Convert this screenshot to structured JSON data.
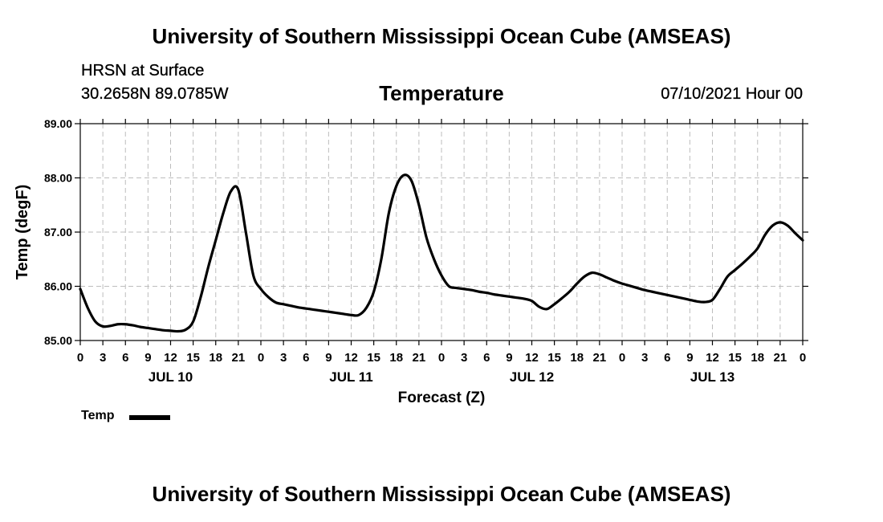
{
  "header": {
    "main_title": "University of Southern Mississippi Ocean Cube (AMSEAS)",
    "station": "HRSN at Surface",
    "coordinates": "30.2658N  89.0785W",
    "datetime": "07/10/2021 Hour 00"
  },
  "footer": {
    "main_title": "University of Southern Mississippi Ocean Cube (AMSEAS)"
  },
  "chart_data": {
    "type": "line",
    "title": "Temperature",
    "xlabel": "Forecast (Z)",
    "ylabel": "Temp (degF)",
    "ylim": [
      85.0,
      89.0
    ],
    "yticks": [
      "85.00",
      "86.00",
      "87.00",
      "88.00",
      "89.00"
    ],
    "xlim": [
      0,
      96
    ],
    "xticks": [
      {
        "hour": 0,
        "label": "0"
      },
      {
        "hour": 3,
        "label": "3"
      },
      {
        "hour": 6,
        "label": "6"
      },
      {
        "hour": 9,
        "label": "9"
      },
      {
        "hour": 12,
        "label": "12"
      },
      {
        "hour": 15,
        "label": "15"
      },
      {
        "hour": 18,
        "label": "18"
      },
      {
        "hour": 21,
        "label": "21"
      },
      {
        "hour": 24,
        "label": "0"
      },
      {
        "hour": 27,
        "label": "3"
      },
      {
        "hour": 30,
        "label": "6"
      },
      {
        "hour": 33,
        "label": "9"
      },
      {
        "hour": 36,
        "label": "12"
      },
      {
        "hour": 39,
        "label": "15"
      },
      {
        "hour": 42,
        "label": "18"
      },
      {
        "hour": 45,
        "label": "21"
      },
      {
        "hour": 48,
        "label": "0"
      },
      {
        "hour": 51,
        "label": "3"
      },
      {
        "hour": 54,
        "label": "6"
      },
      {
        "hour": 57,
        "label": "9"
      },
      {
        "hour": 60,
        "label": "12"
      },
      {
        "hour": 63,
        "label": "15"
      },
      {
        "hour": 66,
        "label": "18"
      },
      {
        "hour": 69,
        "label": "21"
      },
      {
        "hour": 72,
        "label": "0"
      },
      {
        "hour": 75,
        "label": "3"
      },
      {
        "hour": 78,
        "label": "6"
      },
      {
        "hour": 81,
        "label": "9"
      },
      {
        "hour": 84,
        "label": "12"
      },
      {
        "hour": 87,
        "label": "15"
      },
      {
        "hour": 90,
        "label": "18"
      },
      {
        "hour": 93,
        "label": "21"
      },
      {
        "hour": 96,
        "label": "0"
      }
    ],
    "day_labels": [
      {
        "hour": 12,
        "label": "JUL 10"
      },
      {
        "hour": 36,
        "label": "JUL 11"
      },
      {
        "hour": 60,
        "label": "JUL 12"
      },
      {
        "hour": 84,
        "label": "JUL 13"
      }
    ],
    "grid": true,
    "legend": "bottom-left",
    "series": [
      {
        "name": "Temp",
        "x": [
          0,
          1,
          2,
          3,
          4,
          5,
          6,
          7,
          8,
          9,
          10,
          11,
          12,
          13,
          14,
          15,
          16,
          17,
          18,
          19,
          20,
          21,
          22,
          23,
          24,
          25,
          26,
          27,
          28,
          29,
          30,
          31,
          32,
          33,
          34,
          35,
          36,
          37,
          38,
          39,
          40,
          41,
          42,
          43,
          44,
          45,
          46,
          47,
          48,
          49,
          50,
          51,
          52,
          53,
          54,
          55,
          56,
          57,
          58,
          59,
          60,
          61,
          62,
          63,
          64,
          65,
          66,
          67,
          68,
          69,
          70,
          71,
          72,
          73,
          74,
          75,
          76,
          77,
          78,
          79,
          80,
          81,
          82,
          83,
          84,
          85,
          86,
          87,
          88,
          89,
          90,
          91,
          92,
          93,
          94,
          95,
          96
        ],
        "values": [
          85.95,
          85.6,
          85.35,
          85.26,
          85.27,
          85.3,
          85.3,
          85.28,
          85.25,
          85.23,
          85.21,
          85.19,
          85.18,
          85.17,
          85.2,
          85.35,
          85.8,
          86.35,
          86.85,
          87.35,
          87.75,
          87.78,
          87.0,
          86.2,
          85.95,
          85.8,
          85.7,
          85.67,
          85.64,
          85.61,
          85.59,
          85.57,
          85.55,
          85.53,
          85.51,
          85.49,
          85.47,
          85.47,
          85.6,
          85.9,
          86.5,
          87.35,
          87.85,
          88.05,
          87.95,
          87.5,
          86.9,
          86.5,
          86.2,
          86.0,
          85.97,
          85.95,
          85.93,
          85.9,
          85.88,
          85.85,
          85.83,
          85.81,
          85.79,
          85.77,
          85.73,
          85.62,
          85.58,
          85.67,
          85.78,
          85.9,
          86.05,
          86.18,
          86.25,
          86.22,
          86.16,
          86.1,
          86.05,
          86.01,
          85.97,
          85.93,
          85.9,
          85.87,
          85.84,
          85.81,
          85.78,
          85.75,
          85.72,
          85.71,
          85.75,
          85.95,
          86.18,
          86.3,
          86.42,
          86.55,
          86.7,
          86.95,
          87.12,
          87.18,
          87.12,
          86.98,
          86.85
        ]
      }
    ]
  }
}
